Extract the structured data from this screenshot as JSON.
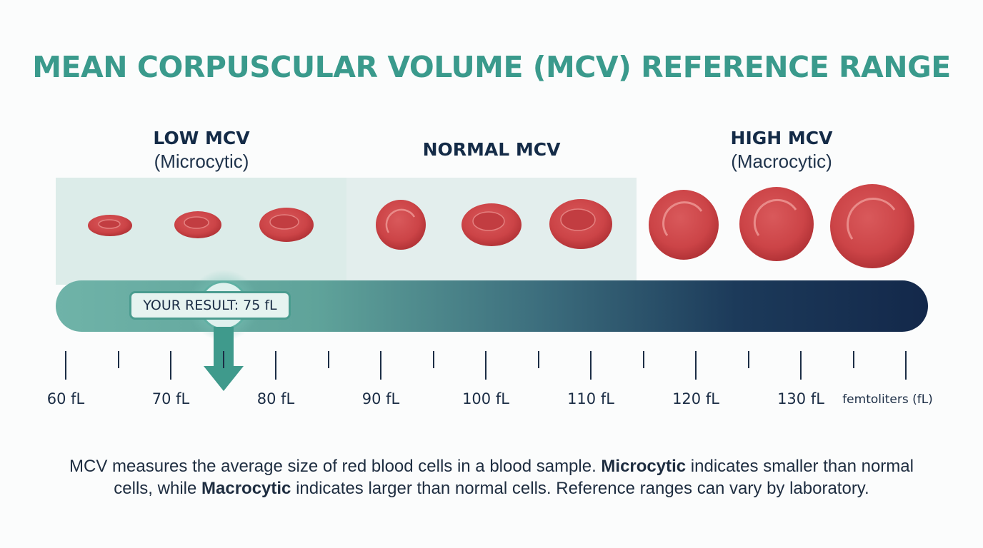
{
  "title": "MEAN CORPUSCULAR VOLUME (MCV) REFERENCE RANGE",
  "categories": [
    {
      "name": "LOW MCV",
      "sub": "(Microcytic)"
    },
    {
      "name": "NORMAL MCV",
      "sub": ""
    },
    {
      "name": "HIGH MCV",
      "sub": "(Macrocytic)"
    }
  ],
  "scale": {
    "major_ticks": [
      "60 fL",
      "70 fL",
      "80 fL",
      "90 fL",
      "100 fL",
      "110 fL",
      "120 fL",
      "130 fL"
    ],
    "unit_label": "femtoliters (fL)"
  },
  "result": {
    "label": "YOUR RESULT: 75 fL",
    "value": 75
  },
  "caption": {
    "part1": "MCV measures the average size of red blood cells in a blood sample. ",
    "bold1": "Microcytic",
    "part2": " indicates smaller than normal cells, while ",
    "bold2": "Macrocytic",
    "part3": " indicates larger than normal cells. Reference ranges can vary by laboratory."
  },
  "colors": {
    "title": "#3a9a8c",
    "low_band": "#dcece9",
    "normal_band": "#e4eeee",
    "bar_start": "#6fb3a8",
    "bar_end": "#13284a",
    "cell": "#cf4a4d",
    "dark_text": "#142b47"
  }
}
